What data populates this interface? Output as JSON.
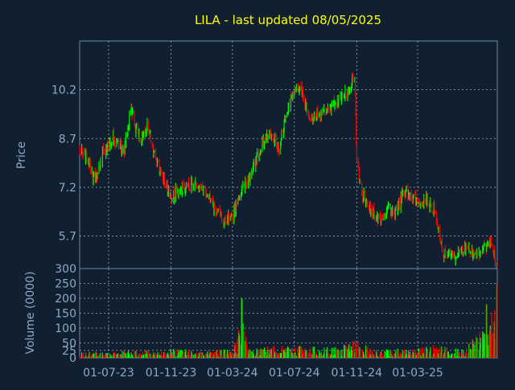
{
  "chart_data": [
    {
      "type": "candlestick",
      "title": "LILA - last updated 08/05/2025",
      "ylabel": "Price",
      "xlabel": "",
      "ylim": [
        4.7,
        11.7
      ],
      "yticks": [
        "5.7",
        "7.2",
        "8.7",
        "10.2"
      ],
      "xticks": [
        "01-07-23",
        "01-11-23",
        "01-03-24",
        "01-07-24",
        "01-11-24",
        "01-03-25"
      ],
      "x_range": [
        "2023-05-05",
        "2025-08-05"
      ],
      "grid": true,
      "up_color": "#00ff00",
      "down_color": "#ff0000",
      "series": [
        {
          "values": [
            [
              "2023-05-05",
              8.4
            ],
            [
              "2023-05-20",
              8.1
            ],
            [
              "2023-06-05",
              7.4
            ],
            [
              "2023-06-20",
              8.3
            ],
            [
              "2023-07-10",
              8.7
            ],
            [
              "2023-08-01",
              8.4
            ],
            [
              "2023-08-15",
              9.6
            ],
            [
              "2023-08-22",
              9.1
            ],
            [
              "2023-09-01",
              8.7
            ],
            [
              "2023-09-15",
              9.1
            ],
            [
              "2023-10-01",
              8.0
            ],
            [
              "2023-10-15",
              7.6
            ],
            [
              "2023-11-01",
              6.9
            ],
            [
              "2023-11-15",
              7.1
            ],
            [
              "2023-12-01",
              7.2
            ],
            [
              "2023-12-20",
              7.3
            ],
            [
              "2024-01-10",
              7.0
            ],
            [
              "2024-02-01",
              6.4
            ],
            [
              "2024-02-15",
              6.2
            ],
            [
              "2024-03-01",
              6.3
            ],
            [
              "2024-03-15",
              7.0
            ],
            [
              "2024-04-01",
              7.4
            ],
            [
              "2024-04-15",
              8.0
            ],
            [
              "2024-05-01",
              8.6
            ],
            [
              "2024-05-15",
              8.8
            ],
            [
              "2024-06-01",
              8.4
            ],
            [
              "2024-06-15",
              9.5
            ],
            [
              "2024-07-01",
              10.2
            ],
            [
              "2024-07-15",
              10.3
            ],
            [
              "2024-08-01",
              9.2
            ],
            [
              "2024-08-15",
              9.4
            ],
            [
              "2024-09-01",
              9.5
            ],
            [
              "2024-09-15",
              9.7
            ],
            [
              "2024-10-01",
              10.0
            ],
            [
              "2024-10-15",
              10.1
            ],
            [
              "2024-10-28",
              10.6
            ],
            [
              "2024-11-01",
              8.0
            ],
            [
              "2024-11-10",
              7.0
            ],
            [
              "2024-11-20",
              6.8
            ],
            [
              "2024-12-01",
              6.5
            ],
            [
              "2024-12-15",
              6.2
            ],
            [
              "2025-01-01",
              6.6
            ],
            [
              "2025-01-15",
              6.3
            ],
            [
              "2025-02-01",
              7.1
            ],
            [
              "2025-02-15",
              6.9
            ],
            [
              "2025-03-01",
              6.8
            ],
            [
              "2025-03-20",
              6.8
            ],
            [
              "2025-04-05",
              6.4
            ],
            [
              "2025-04-20",
              5.2
            ],
            [
              "2025-05-10",
              5.0
            ],
            [
              "2025-06-01",
              5.3
            ],
            [
              "2025-07-01",
              5.2
            ],
            [
              "2025-07-20",
              5.5
            ],
            [
              "2025-08-05",
              4.8
            ]
          ]
        }
      ]
    },
    {
      "type": "bar",
      "ylabel": "Volume (0000)",
      "ylim": [
        0,
        300
      ],
      "yticks": [
        "0",
        "25",
        "50",
        "100",
        "150",
        "200",
        "250",
        "300"
      ],
      "grid": true,
      "series": [
        {
          "values": [
            [
              "2023-05-05",
              25
            ],
            [
              "2023-06-01",
              30
            ],
            [
              "2023-07-01",
              22
            ],
            [
              "2023-08-01",
              35
            ],
            [
              "2023-09-01",
              40
            ],
            [
              "2023-10-01",
              28
            ],
            [
              "2023-11-01",
              45
            ],
            [
              "2023-12-01",
              40
            ],
            [
              "2024-01-01",
              30
            ],
            [
              "2024-02-01",
              45
            ],
            [
              "2024-03-01",
              35
            ],
            [
              "2024-03-20",
              200
            ],
            [
              "2024-04-01",
              60
            ],
            [
              "2024-05-01",
              55
            ],
            [
              "2024-06-01",
              60
            ],
            [
              "2024-07-01",
              70
            ],
            [
              "2024-08-01",
              55
            ],
            [
              "2024-09-01",
              50
            ],
            [
              "2024-10-01",
              60
            ],
            [
              "2024-11-01",
              90
            ],
            [
              "2024-12-01",
              40
            ],
            [
              "2025-01-01",
              40
            ],
            [
              "2025-02-01",
              45
            ],
            [
              "2025-03-01",
              45
            ],
            [
              "2025-04-01",
              60
            ],
            [
              "2025-05-01",
              50
            ],
            [
              "2025-06-01",
              40
            ],
            [
              "2025-07-15",
              180
            ],
            [
              "2025-08-05",
              250
            ]
          ]
        }
      ]
    }
  ]
}
